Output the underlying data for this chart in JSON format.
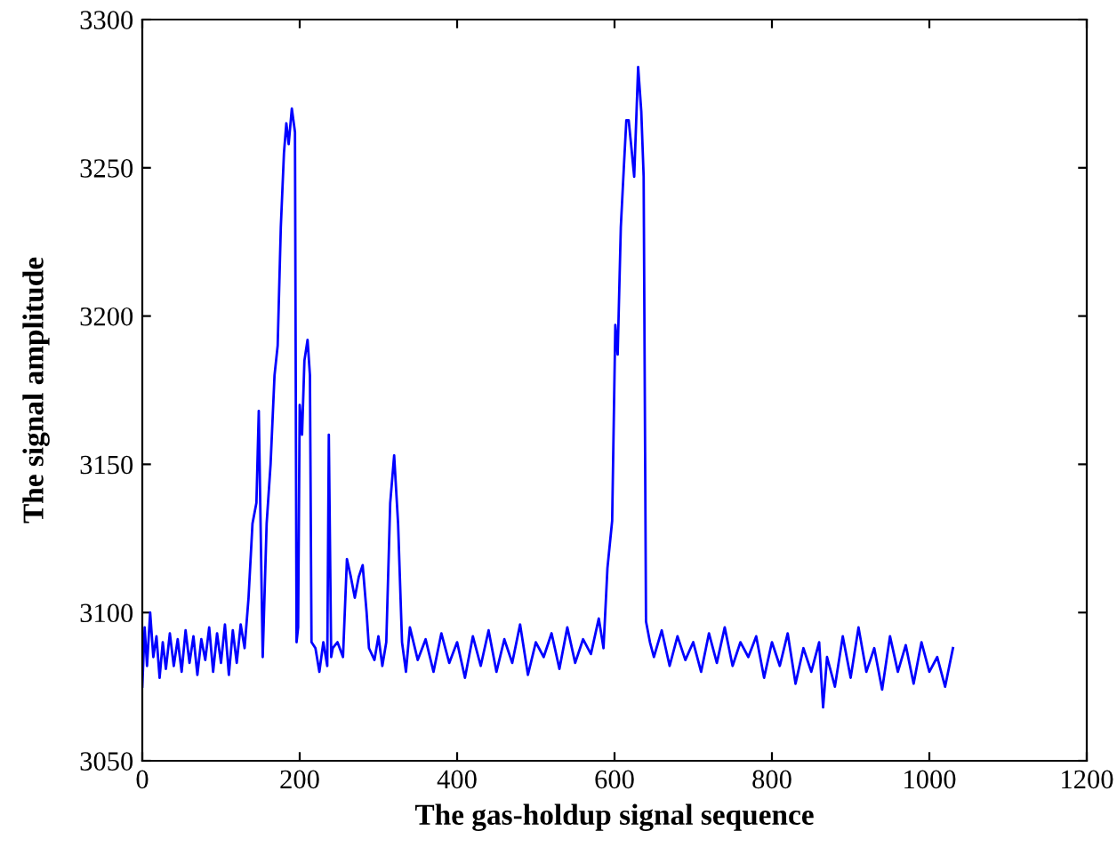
{
  "chart_data": {
    "type": "line",
    "xlabel": "The gas-holdup signal sequence",
    "ylabel": "The signal amplitude",
    "xlim": [
      0,
      1200
    ],
    "xticks": [
      0,
      200,
      400,
      600,
      800,
      1000,
      1200
    ],
    "ylim": [
      3050,
      3300
    ],
    "yticks": [
      3050,
      3100,
      3150,
      3200,
      3250,
      3300
    ],
    "grid": false,
    "legend": false,
    "marker": "none",
    "line_style": "solid",
    "series": [
      {
        "color": "#0000ff",
        "x": [
          0,
          3,
          6,
          10,
          14,
          18,
          22,
          26,
          30,
          35,
          40,
          45,
          50,
          55,
          60,
          65,
          70,
          75,
          80,
          85,
          90,
          95,
          100,
          105,
          110,
          115,
          120,
          125,
          130,
          135,
          140,
          145,
          148,
          153,
          158,
          163,
          168,
          172,
          176,
          180,
          183,
          186,
          190,
          194,
          196,
          198,
          200,
          203,
          206,
          210,
          213,
          215,
          220,
          225,
          230,
          235,
          237,
          240,
          242,
          248,
          255,
          260,
          265,
          270,
          275,
          280,
          285,
          288,
          295,
          300,
          305,
          310,
          315,
          320,
          325,
          330,
          335,
          340,
          350,
          360,
          370,
          380,
          390,
          400,
          410,
          420,
          430,
          440,
          450,
          460,
          470,
          480,
          490,
          500,
          510,
          520,
          530,
          540,
          550,
          560,
          570,
          580,
          586,
          591,
          597,
          601,
          604,
          608,
          612,
          615,
          618,
          621,
          625,
          630,
          634,
          637,
          640,
          645,
          650,
          660,
          670,
          680,
          690,
          700,
          710,
          720,
          730,
          740,
          750,
          760,
          770,
          780,
          790,
          800,
          810,
          820,
          830,
          840,
          850,
          860,
          865,
          870,
          880,
          890,
          900,
          910,
          920,
          930,
          940,
          950,
          960,
          970,
          980,
          990,
          1000,
          1010,
          1020,
          1030
        ],
        "values": [
          3075,
          3095,
          3082,
          3100,
          3085,
          3092,
          3078,
          3090,
          3081,
          3093,
          3082,
          3091,
          3080,
          3094,
          3083,
          3092,
          3079,
          3091,
          3084,
          3095,
          3080,
          3093,
          3083,
          3096,
          3079,
          3094,
          3083,
          3096,
          3088,
          3105,
          3130,
          3137,
          3168,
          3085,
          3130,
          3150,
          3180,
          3190,
          3230,
          3255,
          3265,
          3258,
          3270,
          3262,
          3090,
          3095,
          3170,
          3160,
          3185,
          3192,
          3180,
          3090,
          3088,
          3080,
          3090,
          3082,
          3160,
          3085,
          3088,
          3090,
          3085,
          3118,
          3112,
          3105,
          3112,
          3116,
          3100,
          3088,
          3084,
          3092,
          3082,
          3090,
          3137,
          3153,
          3130,
          3090,
          3080,
          3095,
          3084,
          3091,
          3080,
          3093,
          3083,
          3090,
          3078,
          3092,
          3082,
          3094,
          3080,
          3091,
          3083,
          3096,
          3079,
          3090,
          3085,
          3093,
          3081,
          3095,
          3083,
          3091,
          3086,
          3098,
          3088,
          3115,
          3131,
          3197,
          3187,
          3230,
          3251,
          3266,
          3266,
          3258,
          3247,
          3284,
          3269,
          3247,
          3097,
          3090,
          3085,
          3094,
          3082,
          3092,
          3084,
          3090,
          3080,
          3093,
          3083,
          3095,
          3082,
          3090,
          3085,
          3092,
          3078,
          3090,
          3082,
          3093,
          3076,
          3088,
          3080,
          3090,
          3068,
          3085,
          3075,
          3092,
          3078,
          3095,
          3080,
          3088,
          3074,
          3092,
          3080,
          3089,
          3076,
          3090,
          3080,
          3085,
          3075,
          3088
        ]
      }
    ]
  }
}
